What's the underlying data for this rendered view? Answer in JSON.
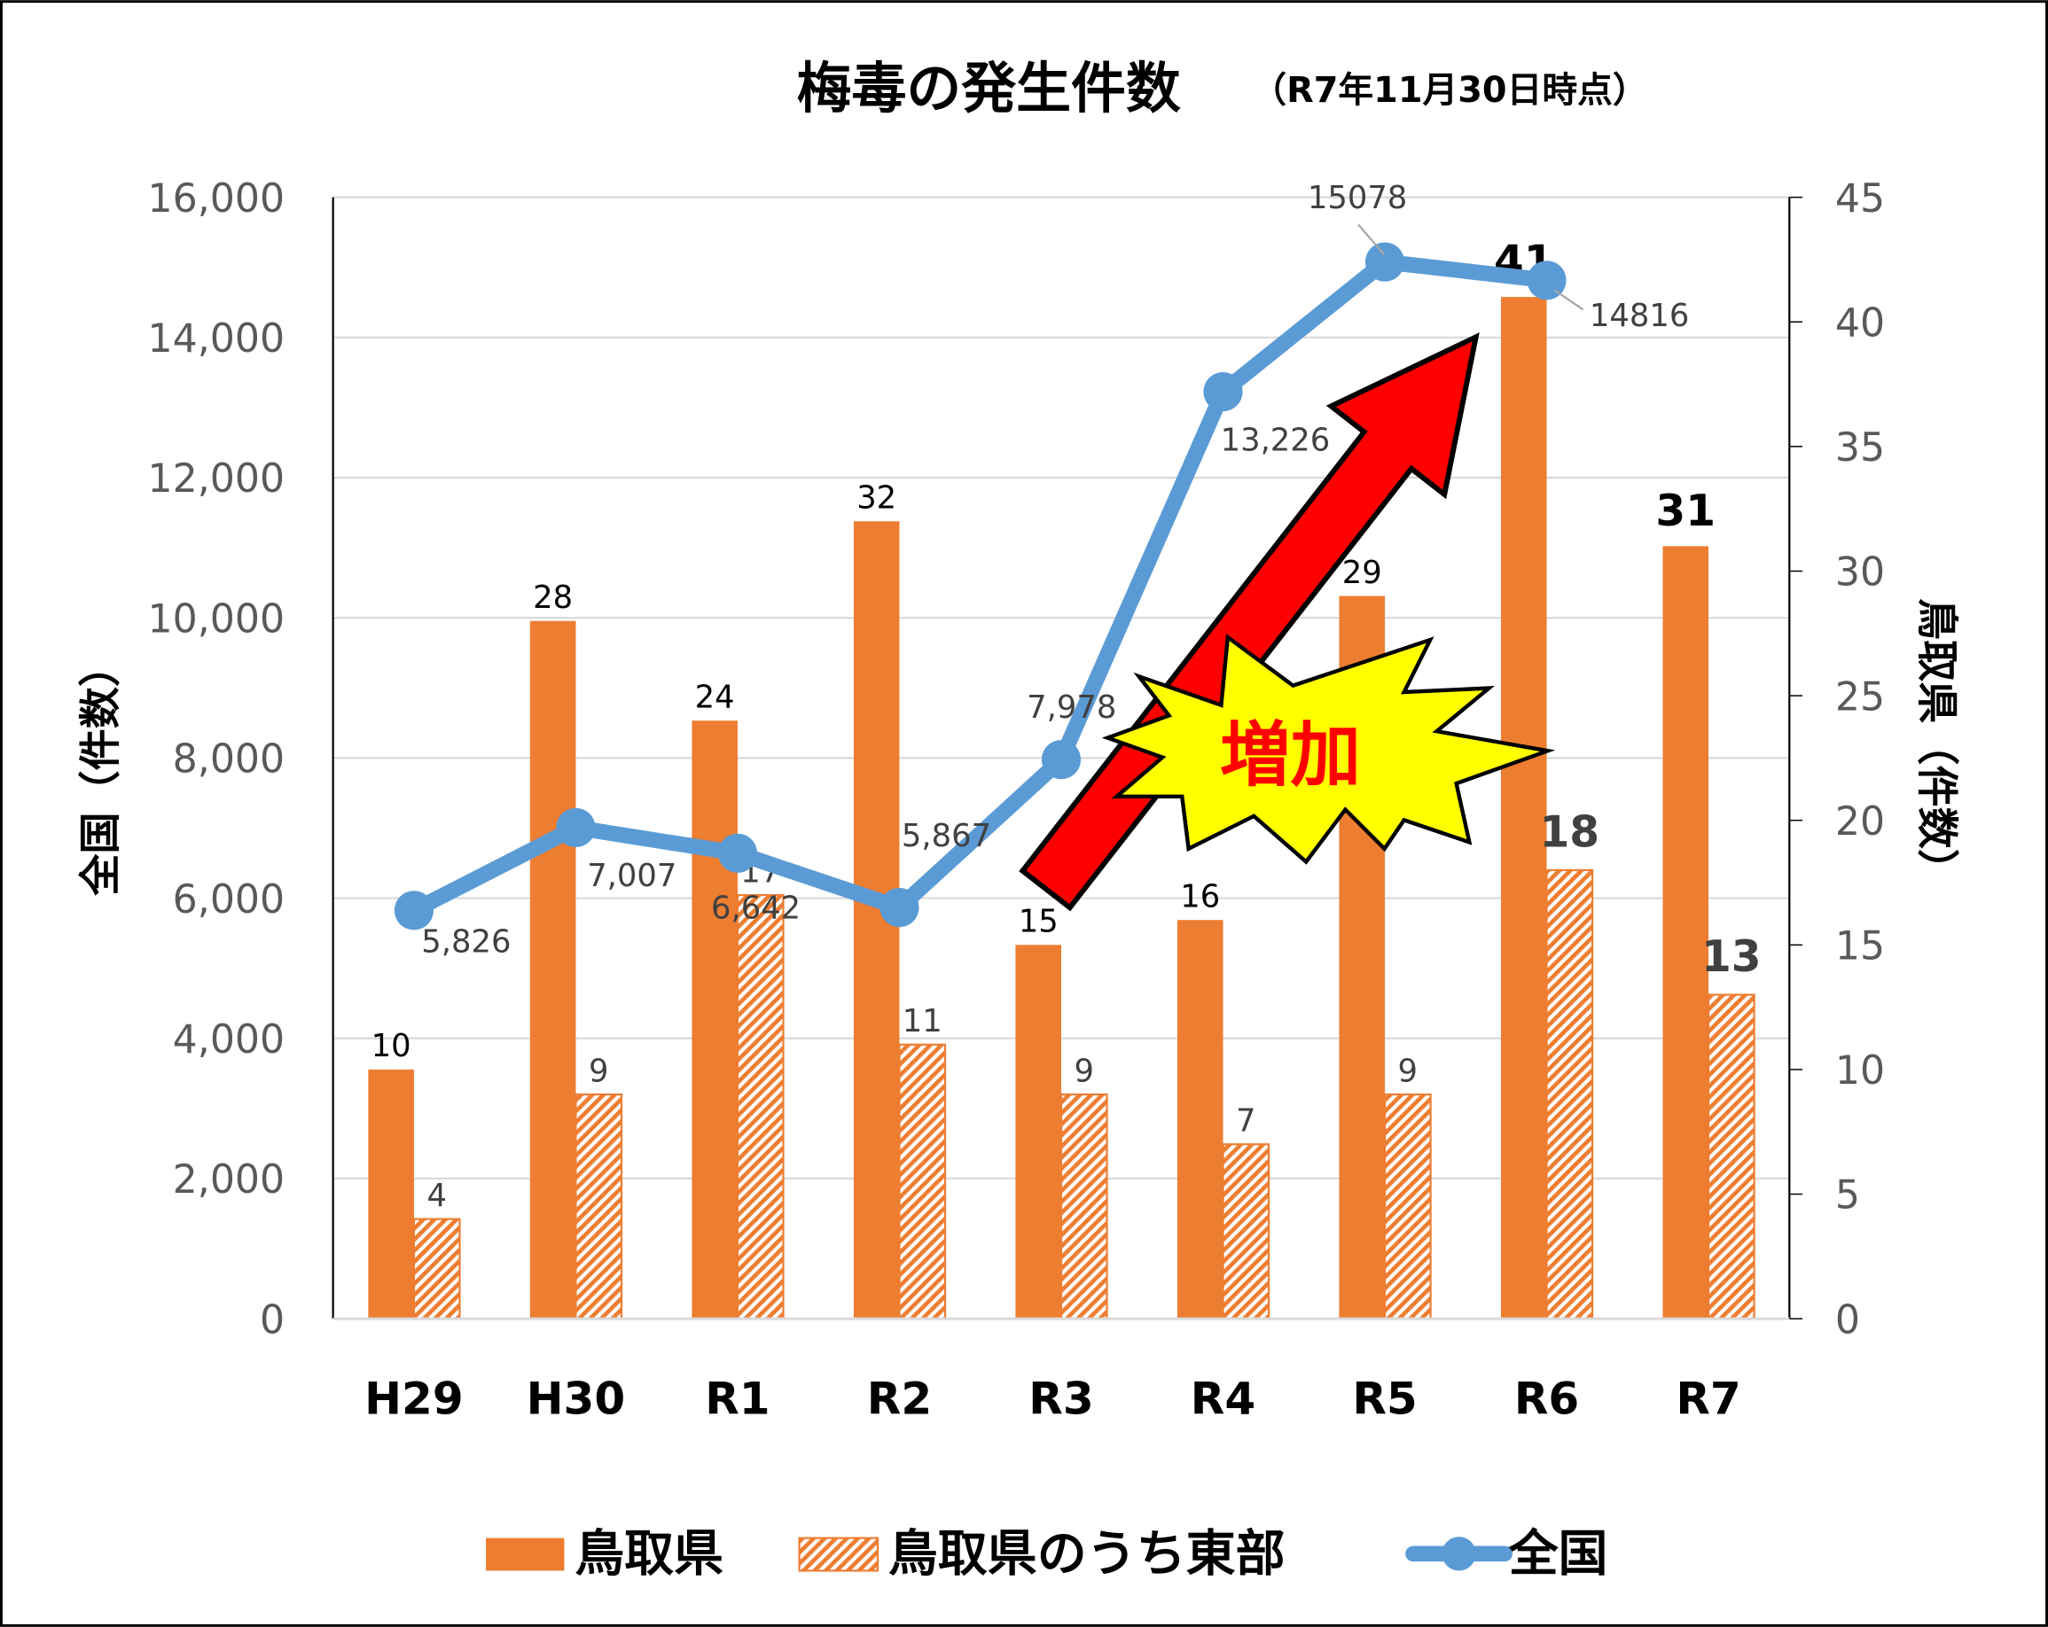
{
  "chart_data": {
    "type": "bar+line",
    "title": "梅毒の発生件数",
    "subtitle": "（R7年11月30日時点）",
    "categories": [
      "H29",
      "H30",
      "R1",
      "R2",
      "R3",
      "R4",
      "R5",
      "R6",
      "R7"
    ],
    "series": [
      {
        "name": "鳥取県",
        "type": "bar",
        "axis": "right",
        "color": "#ED7D31",
        "values": [
          10,
          28,
          24,
          32,
          15,
          16,
          29,
          41,
          31
        ]
      },
      {
        "name": "鳥取県のうち東部",
        "type": "bar",
        "axis": "right",
        "pattern": "diagonal-stripes",
        "color": "#ED7D31",
        "values": [
          4,
          9,
          17,
          11,
          9,
          7,
          9,
          18,
          13
        ]
      },
      {
        "name": "全国",
        "type": "line",
        "axis": "left",
        "color": "#5B9BD5",
        "values": [
          5826,
          7007,
          6642,
          5867,
          7978,
          13226,
          15078,
          14816,
          null
        ],
        "labels": [
          "5,826",
          "7,007",
          "6,642",
          "5,867",
          "7,978",
          "13,226",
          "15078",
          "14816",
          ""
        ]
      }
    ],
    "ylabel_left": "全国（件数）",
    "ylabel_right": "鳥取県（件数）",
    "ylim_left": [
      0,
      16000
    ],
    "yticks_left": [
      "0",
      "2,000",
      "4,000",
      "6,000",
      "8,000",
      "10,000",
      "12,000",
      "14,000",
      "16,000"
    ],
    "ylim_right": [
      0,
      45
    ],
    "yticks_right": [
      "0",
      "5",
      "10",
      "15",
      "20",
      "25",
      "30",
      "35",
      "40",
      "45"
    ],
    "grid": true,
    "legend": "bottom",
    "annotation": {
      "text": "増加",
      "arrow_color": "#FF0000",
      "burst_color": "#FFFF00"
    }
  }
}
